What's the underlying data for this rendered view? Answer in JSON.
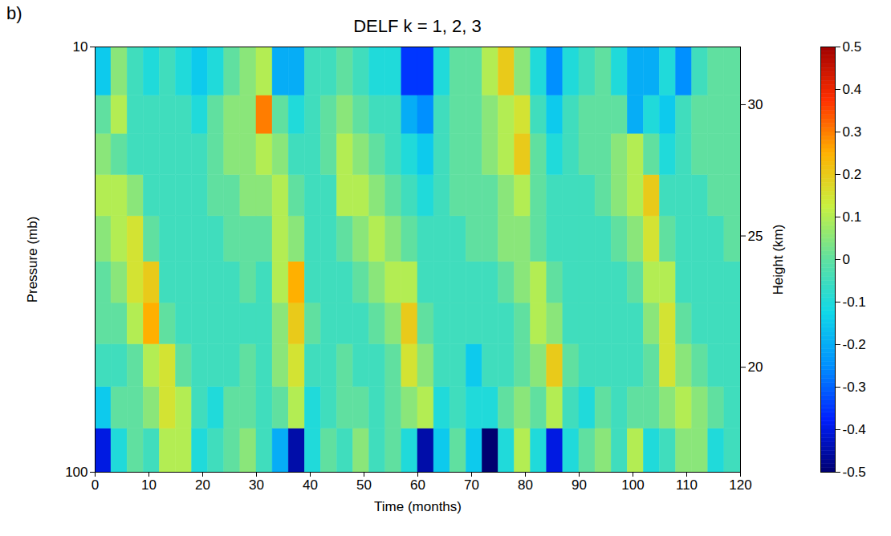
{
  "chart_data": {
    "type": "heatmap",
    "panel_label": "b)",
    "title": "DELF k = 1, 2, 3",
    "xlabel": "Time (months)",
    "ylabel": "Pressure (mb)",
    "y2label": "Height (km)",
    "x": [
      0,
      3,
      6,
      9,
      12,
      15,
      18,
      21,
      24,
      27,
      30,
      33,
      36,
      39,
      42,
      45,
      48,
      51,
      54,
      57,
      60,
      63,
      66,
      69,
      72,
      75,
      78,
      81,
      84,
      87,
      90,
      93,
      96,
      99,
      102,
      105,
      108,
      111,
      114,
      117
    ],
    "y": [
      100,
      79,
      63,
      50,
      40,
      32,
      25,
      20,
      16,
      13
    ],
    "values": [
      [
        -0.4,
        -0.1,
        0.0,
        -0.05,
        0.1,
        0.1,
        -0.1,
        -0.05,
        0.0,
        0.05,
        -0.05,
        -0.2,
        -0.45,
        -0.1,
        0.0,
        -0.05,
        0.05,
        -0.05,
        0.0,
        -0.1,
        -0.45,
        -0.15,
        0.0,
        -0.15,
        -0.5,
        -0.1,
        0.1,
        -0.1,
        -0.4,
        -0.1,
        0.0,
        0.05,
        -0.05,
        0.1,
        -0.1,
        -0.05,
        0.05,
        0.05,
        -0.1,
        -0.05
      ],
      [
        -0.15,
        0.0,
        0.0,
        0.05,
        0.15,
        0.1,
        -0.05,
        -0.1,
        0.0,
        0.0,
        -0.05,
        0.0,
        0.1,
        -0.1,
        -0.05,
        0.0,
        0.0,
        -0.05,
        0.0,
        0.05,
        0.1,
        -0.1,
        -0.05,
        -0.1,
        -0.1,
        0.0,
        0.05,
        0.0,
        0.1,
        -0.05,
        -0.1,
        0.0,
        -0.05,
        0.0,
        0.0,
        0.05,
        0.1,
        0.05,
        0.0,
        -0.05
      ],
      [
        -0.05,
        -0.05,
        0.0,
        0.1,
        0.15,
        0.0,
        -0.05,
        -0.05,
        -0.05,
        0.0,
        -0.05,
        0.05,
        0.15,
        -0.05,
        -0.05,
        0.0,
        -0.05,
        -0.05,
        0.0,
        0.15,
        0.05,
        -0.05,
        -0.05,
        -0.15,
        -0.05,
        -0.05,
        0.0,
        0.05,
        0.2,
        0.0,
        -0.05,
        -0.05,
        -0.05,
        -0.05,
        0.0,
        0.15,
        0.05,
        0.0,
        -0.05,
        -0.05
      ],
      [
        0.0,
        0.0,
        0.1,
        0.25,
        0.0,
        -0.05,
        -0.05,
        -0.05,
        -0.05,
        -0.05,
        -0.05,
        0.05,
        0.2,
        0.0,
        -0.05,
        -0.05,
        -0.05,
        0.0,
        0.05,
        0.2,
        0.0,
        -0.05,
        -0.05,
        -0.05,
        -0.05,
        -0.05,
        0.0,
        0.1,
        0.05,
        -0.05,
        -0.05,
        -0.05,
        -0.05,
        -0.05,
        0.05,
        0.15,
        0.0,
        -0.05,
        -0.05,
        -0.05
      ],
      [
        0.0,
        0.05,
        0.15,
        0.2,
        -0.05,
        -0.05,
        -0.05,
        -0.05,
        -0.05,
        0.0,
        -0.05,
        0.1,
        0.25,
        -0.05,
        -0.05,
        -0.05,
        0.0,
        0.05,
        0.1,
        0.1,
        -0.05,
        -0.05,
        -0.05,
        -0.05,
        -0.05,
        0.0,
        0.05,
        0.1,
        0.0,
        -0.05,
        -0.05,
        -0.05,
        -0.05,
        0.0,
        0.1,
        0.1,
        -0.05,
        -0.05,
        -0.05,
        -0.05
      ],
      [
        0.05,
        0.1,
        0.15,
        0.0,
        -0.05,
        -0.05,
        -0.05,
        -0.05,
        0.0,
        0.0,
        0.0,
        0.1,
        0.05,
        -0.05,
        -0.05,
        0.0,
        0.05,
        0.1,
        0.05,
        0.0,
        -0.05,
        -0.05,
        -0.05,
        0.0,
        0.0,
        0.05,
        0.05,
        0.0,
        -0.05,
        -0.05,
        -0.05,
        -0.05,
        0.0,
        0.05,
        0.15,
        0.0,
        -0.05,
        -0.05,
        -0.05,
        0.0
      ],
      [
        0.1,
        0.1,
        0.05,
        -0.05,
        -0.05,
        -0.05,
        -0.05,
        0.0,
        0.0,
        0.05,
        0.05,
        0.1,
        0.0,
        -0.05,
        -0.05,
        0.1,
        0.1,
        0.05,
        0.0,
        -0.05,
        -0.1,
        -0.05,
        0.0,
        0.0,
        0.0,
        0.05,
        0.1,
        0.0,
        -0.05,
        -0.05,
        -0.05,
        0.0,
        0.05,
        0.1,
        0.2,
        -0.05,
        -0.05,
        -0.05,
        0.0,
        0.0
      ],
      [
        0.05,
        0.0,
        -0.05,
        -0.05,
        -0.05,
        -0.05,
        -0.05,
        0.0,
        0.05,
        0.05,
        0.1,
        0.05,
        -0.05,
        -0.05,
        0.0,
        0.1,
        0.05,
        0.0,
        -0.05,
        -0.1,
        -0.15,
        -0.05,
        0.0,
        0.0,
        0.05,
        0.1,
        0.2,
        0.0,
        -0.1,
        -0.05,
        0.0,
        0.0,
        0.05,
        0.1,
        0.0,
        -0.1,
        -0.05,
        0.0,
        0.0,
        0.0
      ],
      [
        0.0,
        0.1,
        -0.05,
        -0.05,
        -0.05,
        -0.05,
        -0.1,
        0.0,
        0.05,
        0.05,
        0.3,
        0.0,
        -0.1,
        -0.05,
        0.0,
        0.05,
        0.0,
        -0.05,
        -0.05,
        -0.2,
        -0.25,
        -0.05,
        0.0,
        0.0,
        0.05,
        0.1,
        0.15,
        -0.05,
        -0.15,
        -0.05,
        0.0,
        0.0,
        0.0,
        -0.2,
        -0.1,
        -0.15,
        -0.05,
        0.0,
        0.0,
        0.0
      ],
      [
        -0.15,
        0.05,
        -0.05,
        -0.1,
        -0.05,
        -0.1,
        -0.15,
        -0.1,
        0.0,
        0.05,
        0.1,
        -0.2,
        -0.2,
        -0.05,
        -0.05,
        0.0,
        -0.05,
        -0.1,
        -0.1,
        -0.35,
        -0.35,
        -0.1,
        0.0,
        0.0,
        0.1,
        0.2,
        0.05,
        -0.1,
        -0.25,
        -0.1,
        -0.05,
        0.0,
        -0.1,
        -0.2,
        -0.2,
        -0.1,
        -0.25,
        -0.05,
        0.0,
        0.0
      ]
    ],
    "xlim": [
      0,
      120
    ],
    "xticks": [
      0,
      10,
      20,
      30,
      40,
      50,
      60,
      70,
      80,
      90,
      100,
      110,
      120
    ],
    "ylim": [
      10,
      100
    ],
    "yticks": [
      10,
      100
    ],
    "log": "y",
    "y2lim": [
      16,
      32.2
    ],
    "y2ticks": [
      20,
      25,
      30
    ],
    "colorbar": {
      "range": [
        -0.5,
        0.5
      ],
      "ticks": [
        -0.5,
        -0.4,
        -0.3,
        -0.2,
        -0.1,
        0,
        0.1,
        0.2,
        0.3,
        0.4,
        0.5
      ]
    }
  }
}
